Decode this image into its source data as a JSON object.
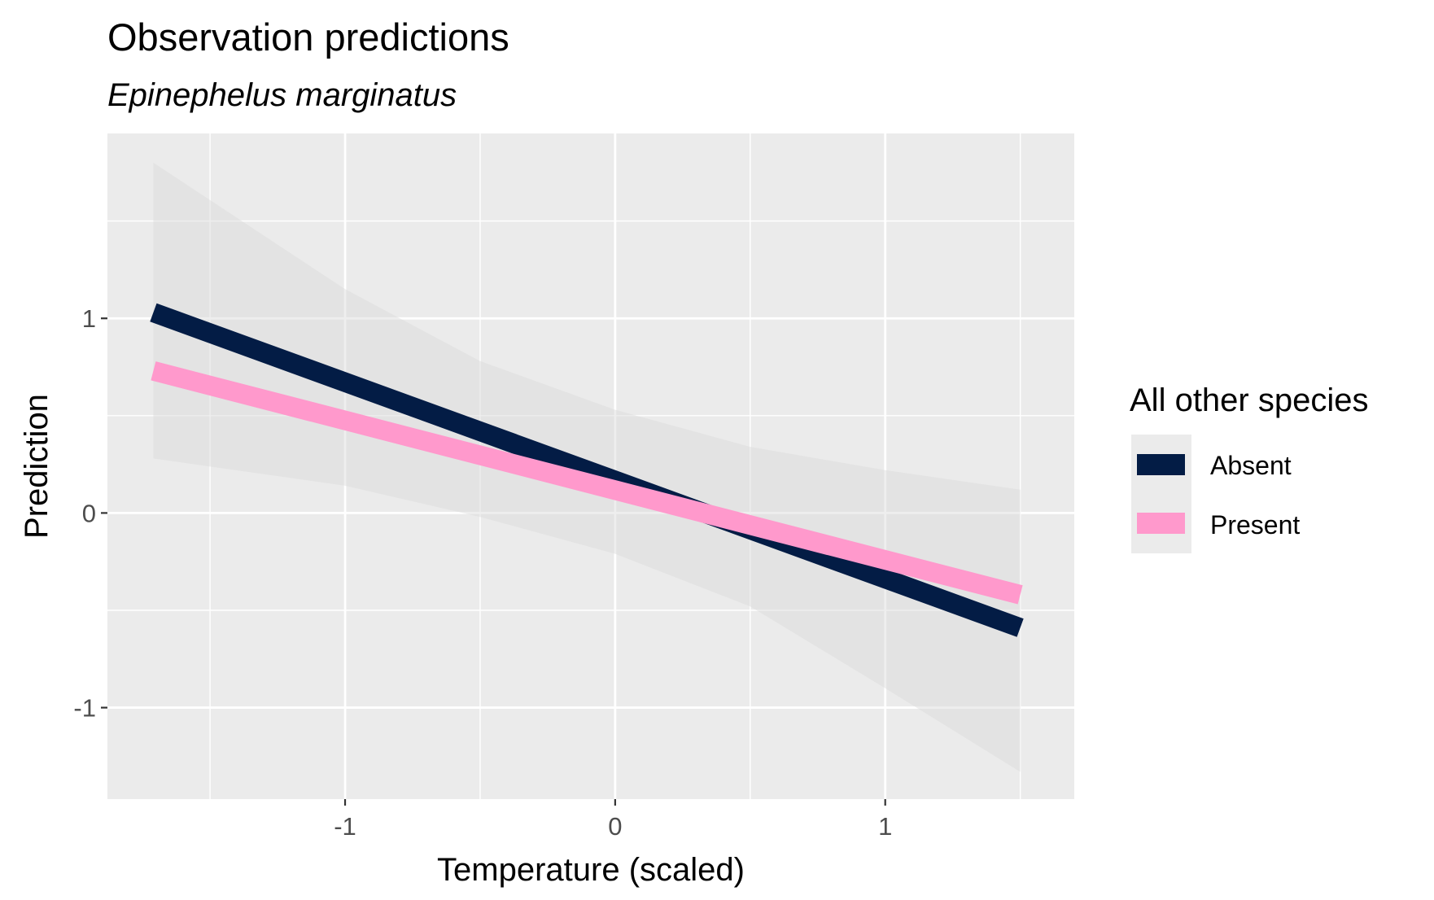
{
  "chart_data": {
    "type": "line",
    "title": "Observation predictions",
    "subtitle": "Epinephelus marginatus",
    "xlabel": "Temperature (scaled)",
    "ylabel": "Prediction",
    "xlim": [
      -1.88,
      1.7
    ],
    "ylim": [
      -1.47,
      1.95
    ],
    "x_major_ticks": [
      -1,
      0,
      1
    ],
    "x_minor_ticks": [
      -1.5,
      -0.5,
      0.5,
      1.5
    ],
    "y_major_ticks": [
      -1,
      0,
      1
    ],
    "y_minor_ticks": [
      -0.5,
      0.5,
      1.5
    ],
    "x_tick_labels": [
      "-1",
      "0",
      "1"
    ],
    "y_tick_labels": [
      "-1",
      "0",
      "1"
    ],
    "grid": true,
    "panel_background": "#ebebeb",
    "legend": {
      "title": "All other species",
      "position": "right",
      "entries": [
        "Absent",
        "Present"
      ]
    },
    "ribbon": {
      "color": "#d9d9d9",
      "x": [
        -1.71,
        -1.0,
        -0.5,
        0.0,
        0.5,
        1.0,
        1.5
      ],
      "upper": [
        1.8,
        1.15,
        0.78,
        0.53,
        0.34,
        0.22,
        0.12
      ],
      "lower": [
        0.28,
        0.14,
        -0.02,
        -0.21,
        -0.48,
        -0.9,
        -1.33
      ]
    },
    "series": [
      {
        "name": "Absent",
        "color": "#031c45",
        "x": [
          -1.71,
          1.5
        ],
        "y": [
          1.03,
          -0.59
        ]
      },
      {
        "name": "Present",
        "color": "#ff99cc",
        "x": [
          -1.71,
          1.5
        ],
        "y": [
          0.73,
          -0.42
        ]
      }
    ]
  }
}
